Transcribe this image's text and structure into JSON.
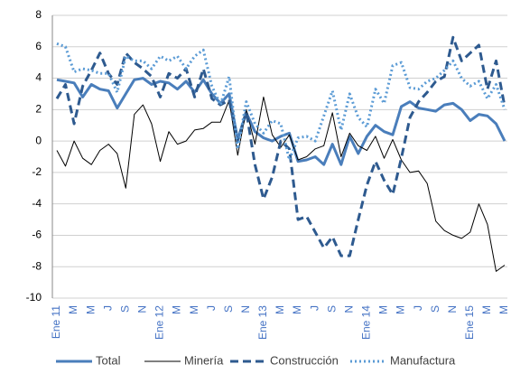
{
  "chart_data": {
    "type": "line",
    "categories": [
      "Ene 11",
      null,
      "M",
      null,
      "M",
      null,
      "J",
      null,
      "S",
      null,
      "N",
      null,
      "Ene 12",
      null,
      "M",
      null,
      "M",
      null,
      "J",
      null,
      "S",
      null,
      "N",
      null,
      "Ene 13",
      null,
      "M",
      null,
      "M",
      null,
      "J",
      null,
      "S",
      null,
      "N",
      null,
      "Ene 14",
      null,
      "M",
      null,
      "M",
      null,
      "J",
      null,
      "S",
      null,
      "N",
      null,
      "Ene 15",
      null,
      "M",
      null,
      "M"
    ],
    "series": [
      {
        "name": "Total",
        "color": "#4a7ebb",
        "dash": "solid",
        "width": 3,
        "values": [
          3.9,
          3.8,
          3.7,
          2.8,
          3.6,
          3.3,
          3.2,
          2.1,
          3.0,
          3.9,
          4.0,
          3.6,
          3.8,
          3.7,
          3.3,
          3.8,
          3.1,
          3.9,
          3.0,
          2.4,
          3.0,
          0.1,
          1.8,
          0.6,
          0.2,
          0.0,
          0.3,
          0.5,
          -1.3,
          -1.2,
          -1.0,
          -1.5,
          -0.2,
          -1.5,
          0.3,
          -0.8,
          0.3,
          1.0,
          0.6,
          0.4,
          2.2,
          2.5,
          2.1,
          2.0,
          1.9,
          2.3,
          2.4,
          2.0,
          1.3,
          1.7,
          1.6,
          1.1,
          0.0
        ]
      },
      {
        "name": "Minería",
        "color": "#000000",
        "dash": "solid",
        "width": 1,
        "values": [
          -0.6,
          -1.6,
          0.0,
          -1.1,
          -1.5,
          -0.6,
          -0.2,
          -0.8,
          -3.0,
          1.7,
          2.3,
          1.1,
          -1.3,
          0.6,
          -0.2,
          0.0,
          0.7,
          0.8,
          1.2,
          1.2,
          2.6,
          -0.9,
          2.0,
          -0.2,
          2.8,
          0.4,
          -0.4,
          0.4,
          -1.2,
          -1.0,
          -0.5,
          -0.3,
          1.8,
          -1.0,
          0.5,
          -0.3,
          -0.6,
          0.3,
          -1.1,
          0.1,
          -1.2,
          -2.0,
          -1.9,
          -2.7,
          -5.1,
          -5.7,
          -6.0,
          -6.2,
          -5.8,
          -4.0,
          -5.3,
          -8.3,
          -7.9
        ]
      },
      {
        "name": "Construcción",
        "color": "#2e5a8f",
        "dash": "dash",
        "width": 3,
        "values": [
          2.7,
          3.6,
          1.1,
          3.5,
          4.5,
          5.6,
          4.3,
          3.6,
          5.6,
          5.0,
          4.6,
          4.1,
          2.8,
          4.3,
          4.0,
          4.6,
          2.8,
          4.6,
          2.7,
          2.3,
          2.6,
          0.0,
          1.9,
          -1.5,
          -3.7,
          -2.3,
          0.0,
          -0.5,
          -5.0,
          -4.8,
          -5.8,
          -6.8,
          -6.1,
          -7.3,
          -7.3,
          -5.0,
          -2.8,
          -1.3,
          -2.5,
          -3.4,
          -1.1,
          1.5,
          2.5,
          3.1,
          3.8,
          4.1,
          6.6,
          5.1,
          5.6,
          6.1,
          3.3,
          5.1,
          2.2
        ]
      },
      {
        "name": "Manufactura",
        "color": "#5b9bd5",
        "dash": "dot",
        "width": 3,
        "values": [
          6.2,
          6.0,
          4.4,
          4.6,
          4.5,
          4.3,
          4.3,
          3.1,
          5.4,
          5.1,
          5.1,
          4.6,
          5.4,
          5.1,
          5.4,
          4.6,
          5.4,
          5.8,
          3.5,
          2.3,
          4.1,
          -0.5,
          2.5,
          1.1,
          0.5,
          1.3,
          1.1,
          -1.2,
          0.2,
          0.3,
          0.0,
          1.6,
          3.2,
          0.7,
          3.0,
          1.5,
          0.9,
          3.3,
          2.4,
          4.8,
          5.0,
          3.4,
          3.3,
          3.8,
          4.0,
          4.5,
          5.1,
          4.0,
          3.5,
          3.8,
          2.7,
          3.6,
          2.0
        ]
      }
    ],
    "ylim": [
      -10,
      8
    ],
    "yticks": [
      -10,
      -8,
      -6,
      -4,
      -2,
      0,
      2,
      4,
      6,
      8
    ],
    "grid": true,
    "legend": "bottom"
  }
}
